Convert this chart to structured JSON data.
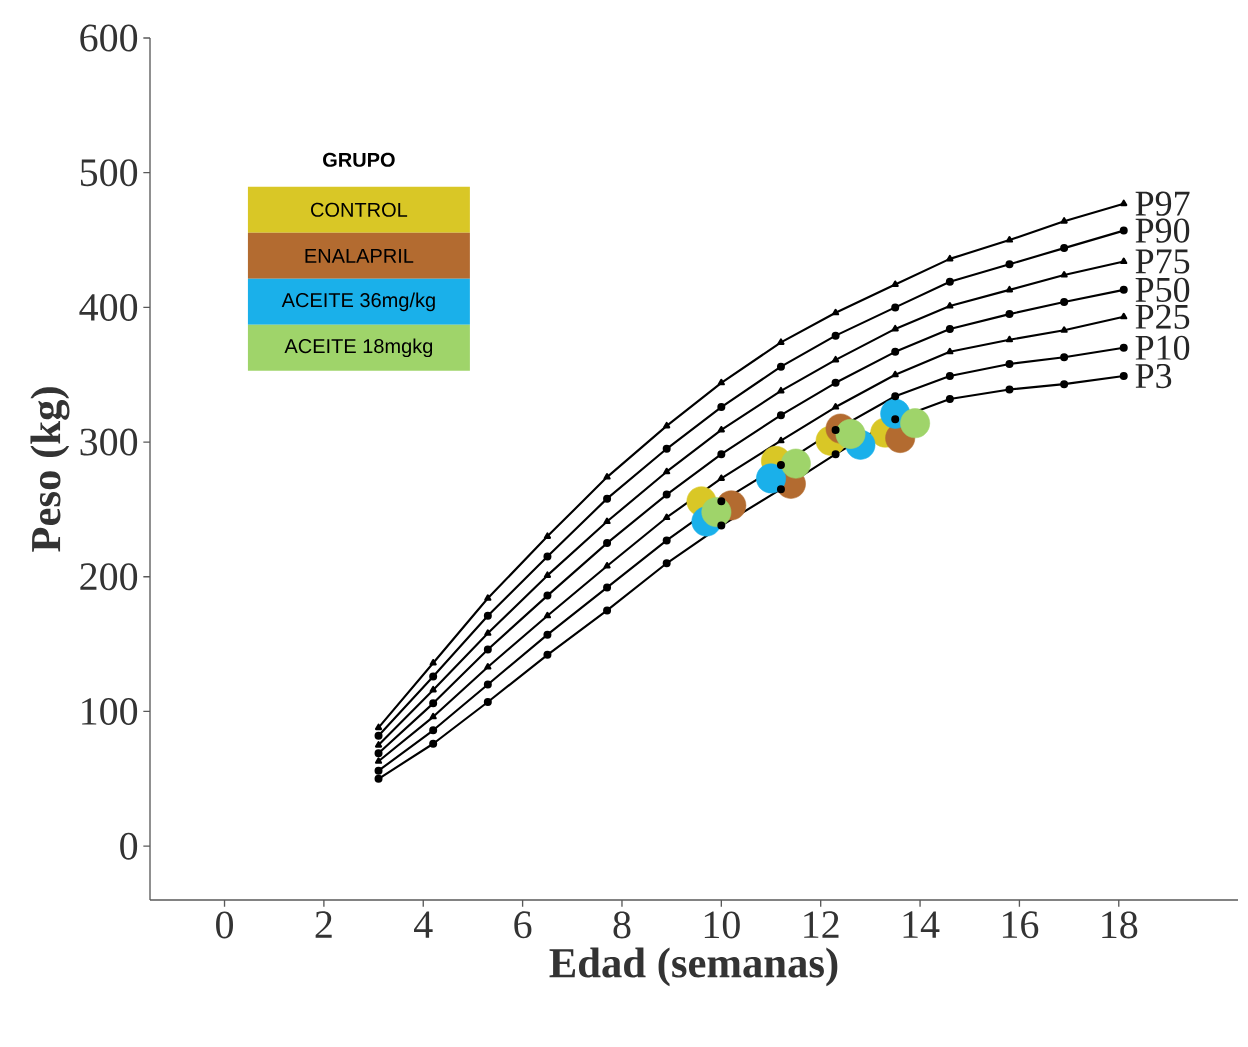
{
  "chart_data": {
    "type": "line",
    "xlabel": "Edad (semanas)",
    "ylabel": "Peso (kg)",
    "legend_title": "GRUPO",
    "legend": "top left",
    "xlim": [
      -1.5,
      20.4
    ],
    "ylim": [
      -40,
      600
    ],
    "xticks": [
      0,
      2,
      4,
      6,
      8,
      10,
      12,
      14,
      16,
      18
    ],
    "yticks": [
      0,
      100,
      200,
      300,
      400,
      500,
      600
    ],
    "x": [
      3.1,
      4.2,
      5.3,
      6.5,
      7.7,
      8.9,
      10.0,
      11.2,
      12.3,
      13.5,
      14.6,
      15.8,
      16.9,
      18.1
    ],
    "series": [
      {
        "name": "P97",
        "color": "#000000",
        "marker": "triangle",
        "values": [
          88,
          136,
          184,
          230,
          274,
          312,
          344,
          374,
          396,
          417,
          436,
          450,
          464,
          477
        ]
      },
      {
        "name": "P90",
        "color": "#000000",
        "marker": "circle",
        "values": [
          82,
          126,
          171,
          215,
          258,
          295,
          326,
          356,
          379,
          400,
          419,
          432,
          444,
          457
        ]
      },
      {
        "name": "P75",
        "color": "#000000",
        "marker": "triangle",
        "values": [
          75,
          116,
          158,
          201,
          241,
          278,
          309,
          338,
          361,
          384,
          401,
          413,
          424,
          434
        ]
      },
      {
        "name": "P50",
        "color": "#000000",
        "marker": "circle",
        "values": [
          69,
          106,
          146,
          186,
          225,
          261,
          291,
          320,
          344,
          367,
          384,
          395,
          404,
          413
        ]
      },
      {
        "name": "P25",
        "color": "#000000",
        "marker": "triangle",
        "values": [
          63,
          96,
          133,
          171,
          208,
          244,
          273,
          301,
          326,
          350,
          367,
          376,
          383,
          393
        ]
      },
      {
        "name": "P10",
        "color": "#000000",
        "marker": "circle",
        "values": [
          56,
          86,
          120,
          157,
          192,
          227,
          256,
          283,
          309,
          334,
          349,
          358,
          363,
          370
        ]
      },
      {
        "name": "P3",
        "color": "#000000",
        "marker": "circle",
        "values": [
          50,
          76,
          107,
          142,
          175,
          210,
          238,
          265,
          291,
          317,
          332,
          339,
          343,
          349
        ]
      },
      {
        "name": "CONTROL",
        "type": "scatter",
        "marker": "circle",
        "color": "#d9c726",
        "x": [
          9.6,
          11.1,
          12.2,
          13.3
        ],
        "values": [
          256,
          286,
          301,
          307
        ]
      },
      {
        "name": "ENALAPRIL",
        "type": "scatter",
        "marker": "circle",
        "color": "#b36b30",
        "x": [
          10.2,
          11.4,
          12.4,
          13.6
        ],
        "values": [
          253,
          269,
          310,
          303
        ]
      },
      {
        "name": "ACEITE 36mg/kg",
        "type": "scatter",
        "marker": "circle",
        "color": "#1ab0ea",
        "x": [
          9.7,
          11.0,
          12.8,
          13.5
        ],
        "values": [
          241,
          273,
          298,
          321
        ]
      },
      {
        "name": "ACEITE 18mgkg",
        "type": "scatter",
        "marker": "circle",
        "color": "#9fd46a",
        "x": [
          9.9,
          11.5,
          12.6,
          13.9
        ],
        "values": [
          248,
          284,
          306,
          314
        ]
      }
    ]
  }
}
